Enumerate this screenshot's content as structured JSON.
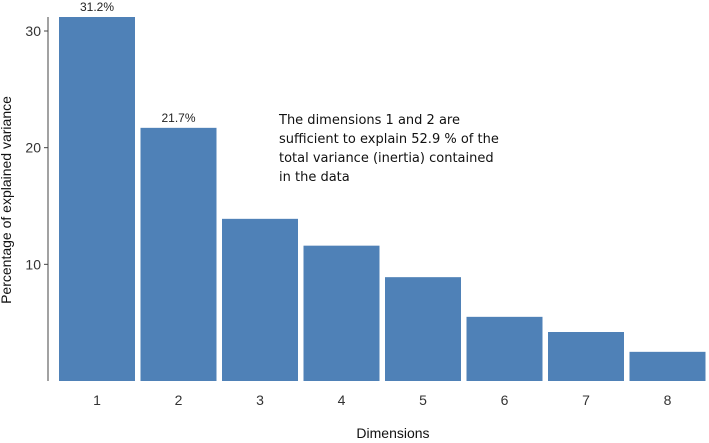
{
  "chart_data": {
    "type": "bar",
    "categories": [
      "1",
      "2",
      "3",
      "4",
      "5",
      "6",
      "7",
      "8"
    ],
    "values": [
      31.2,
      21.7,
      13.9,
      11.6,
      8.9,
      5.5,
      4.2,
      2.5
    ],
    "data_labels": [
      "31.2%",
      "21.7%",
      "",
      "",
      "",
      "",
      "",
      ""
    ],
    "title": "",
    "xlabel": "Dimensions",
    "ylabel": "Percentage of explained variance",
    "ylim": [
      0,
      31.2
    ],
    "yticks": [
      10,
      20,
      30
    ],
    "bar_color": "#4f81b7",
    "grid": false,
    "annotation": [
      "The dimensions 1 and 2 are",
      "sufficient to explain 52.9 % of the",
      "total variance (inertia) contained",
      "in the data"
    ]
  }
}
